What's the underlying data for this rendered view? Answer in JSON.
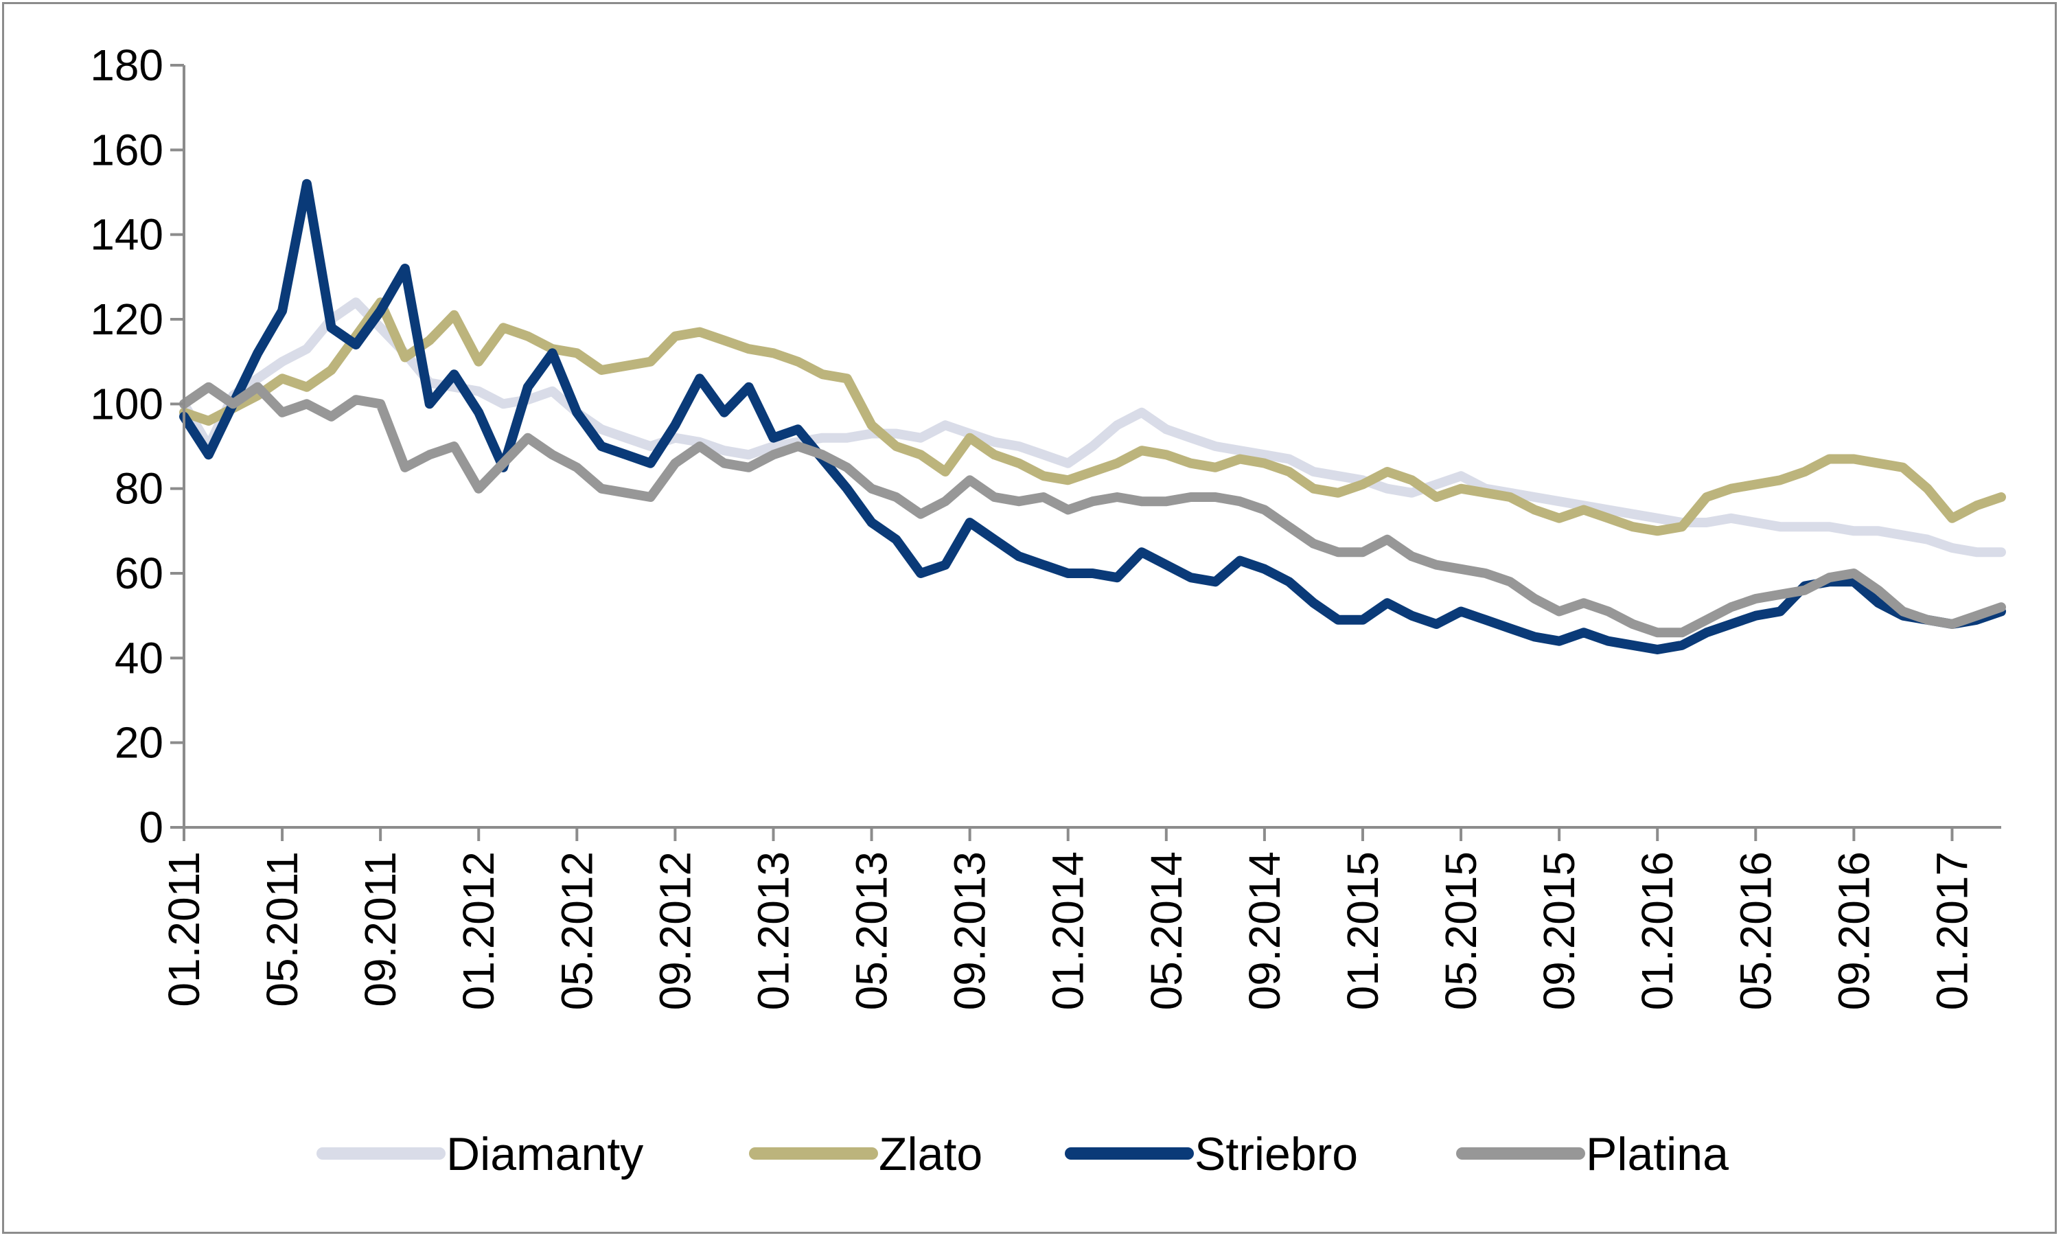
{
  "chart_data": {
    "type": "line",
    "title": "",
    "xlabel": "",
    "ylabel": "",
    "ylim": [
      0,
      180
    ],
    "yticks": [
      0,
      20,
      40,
      60,
      80,
      100,
      120,
      140,
      160,
      180
    ],
    "x_tick_labels": [
      "01.2011",
      "05.2011",
      "09.2011",
      "01.2012",
      "05.2012",
      "09.2012",
      "01.2013",
      "05.2013",
      "09.2013",
      "01.2014",
      "05.2014",
      "09.2014",
      "01.2015",
      "05.2015",
      "09.2015",
      "01.2016",
      "05.2016",
      "09.2016",
      "01.2017"
    ],
    "x_range": [
      "2011-01",
      "2017-03"
    ],
    "grid": false,
    "legend_position": "bottom",
    "x": [
      "2011-01",
      "2011-02",
      "2011-03",
      "2011-04",
      "2011-05",
      "2011-06",
      "2011-07",
      "2011-08",
      "2011-09",
      "2011-10",
      "2011-11",
      "2011-12",
      "2012-01",
      "2012-02",
      "2012-03",
      "2012-04",
      "2012-05",
      "2012-06",
      "2012-07",
      "2012-08",
      "2012-09",
      "2012-10",
      "2012-11",
      "2012-12",
      "2013-01",
      "2013-02",
      "2013-03",
      "2013-04",
      "2013-05",
      "2013-06",
      "2013-07",
      "2013-08",
      "2013-09",
      "2013-10",
      "2013-11",
      "2013-12",
      "2014-01",
      "2014-02",
      "2014-03",
      "2014-04",
      "2014-05",
      "2014-06",
      "2014-07",
      "2014-08",
      "2014-09",
      "2014-10",
      "2014-11",
      "2014-12",
      "2015-01",
      "2015-02",
      "2015-03",
      "2015-04",
      "2015-05",
      "2015-06",
      "2015-07",
      "2015-08",
      "2015-09",
      "2015-10",
      "2015-11",
      "2015-12",
      "2016-01",
      "2016-02",
      "2016-03",
      "2016-04",
      "2016-05",
      "2016-06",
      "2016-07",
      "2016-08",
      "2016-09",
      "2016-10",
      "2016-11",
      "2016-12",
      "2017-01",
      "2017-02",
      "2017-03"
    ],
    "series": [
      {
        "name": "Diamanty",
        "color": "#d9dce8",
        "values": [
          100,
          90,
          102,
          106,
          110,
          113,
          120,
          124,
          118,
          112,
          105,
          104,
          103,
          100,
          101,
          103,
          98,
          94,
          92,
          90,
          92,
          91,
          89,
          88,
          90,
          91,
          92,
          92,
          93,
          93,
          92,
          95,
          93,
          91,
          90,
          88,
          86,
          90,
          95,
          98,
          94,
          92,
          90,
          89,
          88,
          87,
          84,
          83,
          82,
          80,
          79,
          81,
          83,
          80,
          79,
          78,
          77,
          76,
          75,
          74,
          73,
          72,
          72,
          73,
          72,
          71,
          71,
          71,
          70,
          70,
          69,
          68,
          66,
          65,
          65
        ]
      },
      {
        "name": "Zlato",
        "color": "#bcb47c",
        "values": [
          98,
          96,
          99,
          102,
          106,
          104,
          108,
          116,
          124,
          111,
          115,
          121,
          110,
          118,
          116,
          113,
          112,
          108,
          109,
          110,
          116,
          117,
          115,
          113,
          112,
          110,
          107,
          106,
          95,
          90,
          88,
          84,
          92,
          88,
          86,
          83,
          82,
          84,
          86,
          89,
          88,
          86,
          85,
          87,
          86,
          84,
          80,
          79,
          81,
          84,
          82,
          78,
          80,
          79,
          78,
          75,
          73,
          75,
          73,
          71,
          70,
          71,
          78,
          80,
          81,
          82,
          84,
          87,
          87,
          86,
          85,
          80,
          73,
          76,
          78
        ]
      },
      {
        "name": "Striebro",
        "color": "#0a3a78",
        "values": [
          97,
          88,
          100,
          112,
          122,
          152,
          118,
          114,
          122,
          132,
          100,
          107,
          98,
          85,
          104,
          112,
          98,
          90,
          88,
          86,
          95,
          106,
          98,
          104,
          92,
          94,
          87,
          80,
          72,
          68,
          60,
          62,
          72,
          68,
          64,
          62,
          60,
          60,
          59,
          65,
          62,
          59,
          58,
          63,
          61,
          58,
          53,
          49,
          49,
          53,
          50,
          48,
          51,
          49,
          47,
          45,
          44,
          46,
          44,
          43,
          42,
          43,
          46,
          48,
          50,
          51,
          57,
          58,
          58,
          53,
          50,
          49,
          48,
          49,
          51
        ]
      },
      {
        "name": "Platina",
        "color": "#979797",
        "values": [
          100,
          104,
          100,
          104,
          98,
          100,
          97,
          101,
          100,
          85,
          88,
          90,
          80,
          86,
          92,
          88,
          85,
          80,
          79,
          78,
          86,
          90,
          86,
          85,
          88,
          90,
          88,
          85,
          80,
          78,
          74,
          77,
          82,
          78,
          77,
          78,
          75,
          77,
          78,
          77,
          77,
          78,
          78,
          77,
          75,
          71,
          67,
          65,
          65,
          68,
          64,
          62,
          61,
          60,
          58,
          54,
          51,
          53,
          51,
          48,
          46,
          46,
          49,
          52,
          54,
          55,
          56,
          59,
          60,
          56,
          51,
          49,
          48,
          50,
          52
        ]
      }
    ]
  }
}
